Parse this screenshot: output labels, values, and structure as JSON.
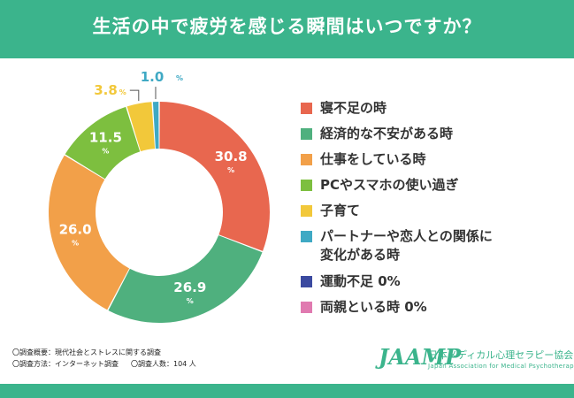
{
  "header": {
    "title": "生活の中で疲労を感じる瞬間はいつですか？"
  },
  "chart_data": {
    "type": "pie",
    "title": "生活の中で疲労を感じる瞬間はいつですか？",
    "unit": "%",
    "slices": [
      {
        "label": "寝不足の時",
        "value": 30.8,
        "display": "30.8",
        "color": "#e8674f"
      },
      {
        "label": "経済的な不安がある時",
        "value": 26.9,
        "display": "26.9",
        "color": "#4fb07e"
      },
      {
        "label": "仕事をしている時",
        "value": 26.0,
        "display": "26.0",
        "color": "#f2a049"
      },
      {
        "label": "PCやスマホの使い過ぎ",
        "value": 11.5,
        "display": "11.5",
        "color": "#7dbf3f"
      },
      {
        "label": "子育て",
        "value": 3.8,
        "display": "3.8",
        "color": "#f2c83a"
      },
      {
        "label": "パートナーや恋人との関係に変化がある時",
        "value": 1.0,
        "display": "1.0",
        "color": "#3fa9c4"
      },
      {
        "label": "運動不足",
        "value": 0,
        "display": "0%",
        "color": "#3b4aa0"
      },
      {
        "label": "両親といる時",
        "value": 0,
        "display": "0%",
        "color": "#e07ab0"
      }
    ],
    "legend": [
      {
        "text": "寝不足の時",
        "color": "#e8674f"
      },
      {
        "text": "経済的な不安がある時",
        "color": "#4fb07e"
      },
      {
        "text": "仕事をしている時",
        "color": "#f2a049"
      },
      {
        "text": "PCやスマホの使い過ぎ",
        "color": "#7dbf3f"
      },
      {
        "text": "子育て",
        "color": "#f2c83a"
      },
      {
        "text_line1": "パートナーや恋人との関係に",
        "text_line2": "変化がある時",
        "color": "#3fa9c4"
      },
      {
        "text": "運動不足 0%",
        "color": "#3b4aa0"
      },
      {
        "text": "両親といる時 0%",
        "color": "#e07ab0"
      }
    ]
  },
  "notes": {
    "line1": "〇調査概要：現代社会とストレスに関する調査",
    "line2a": "〇調査方法：インターネット調査",
    "line2b": "〇調査人数：104 人"
  },
  "logo": {
    "mark": "JAAMP",
    "jp": "日本メディカル心理セラピー協会",
    "en": "Japan Association for Medical Psychotherapy"
  },
  "colors": {
    "brand": "#3bb48c"
  }
}
